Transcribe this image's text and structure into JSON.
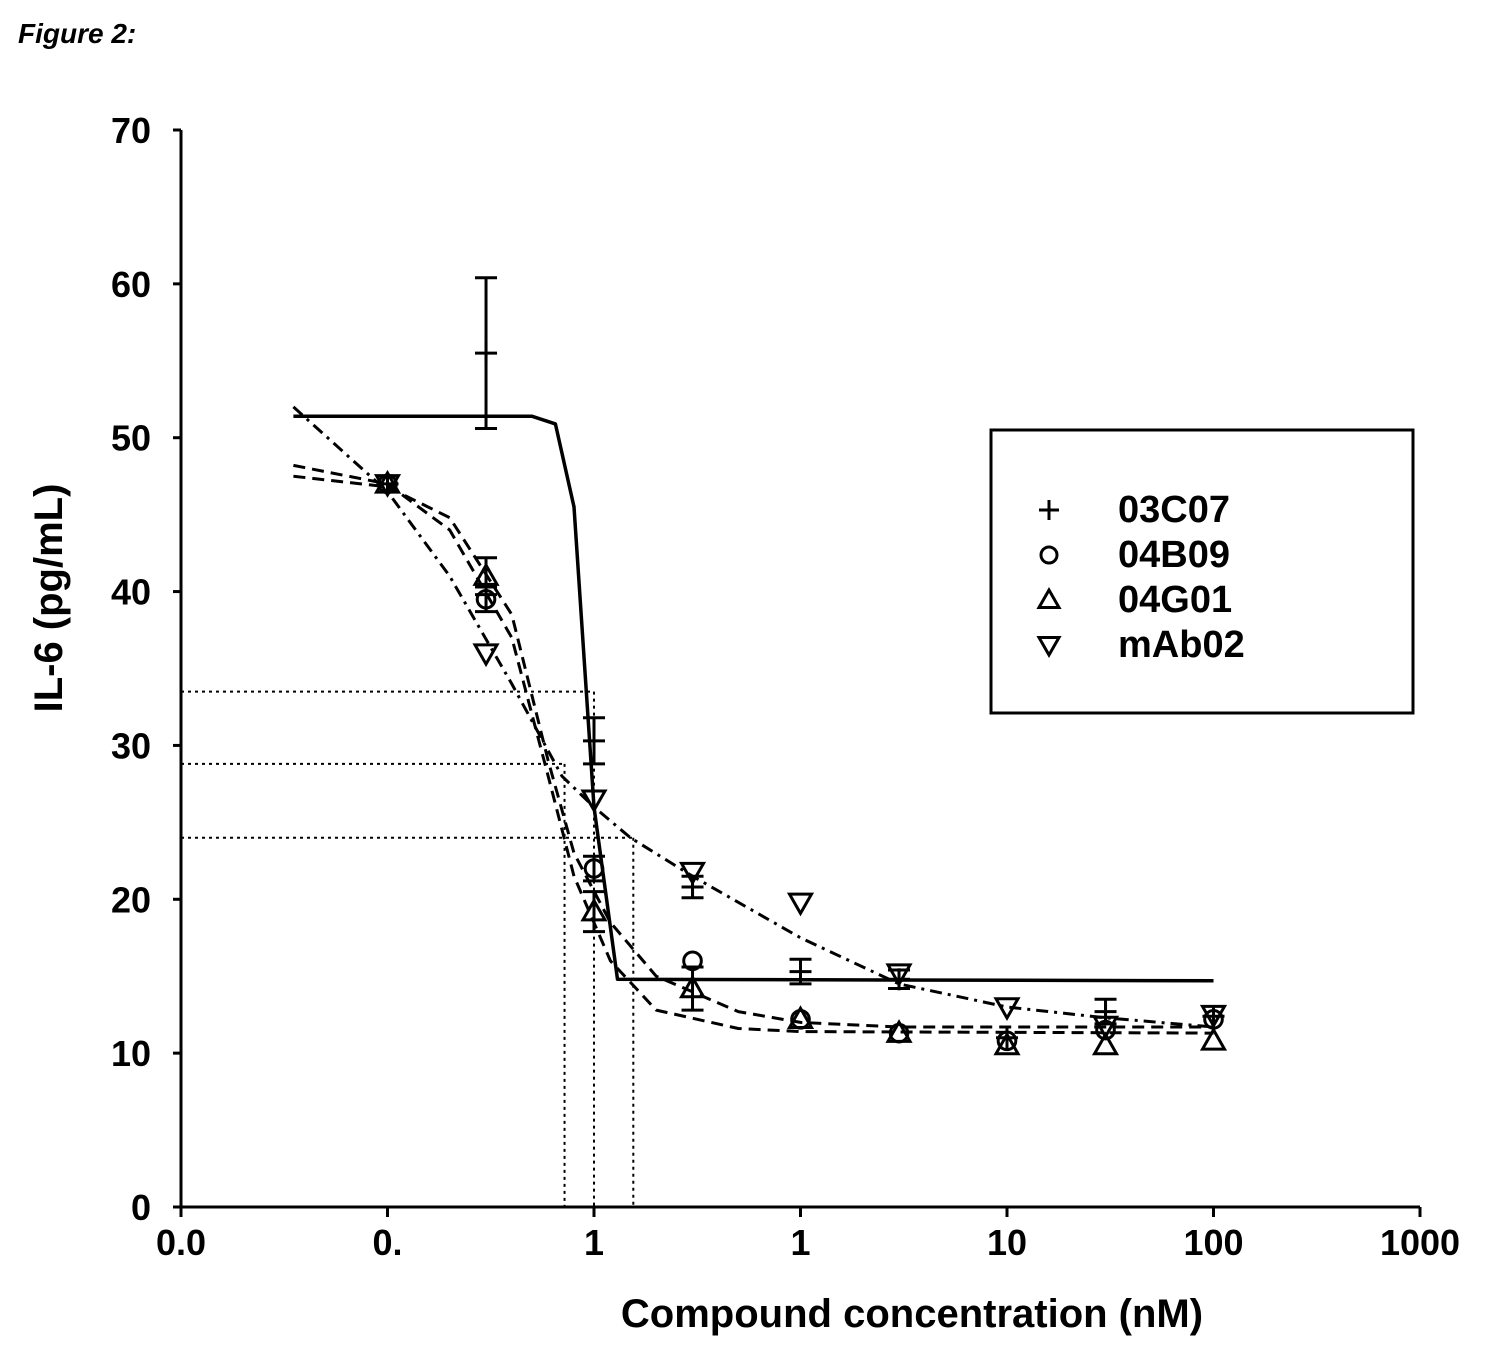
{
  "figure": {
    "label": "Figure 2:"
  },
  "chart_data": {
    "type": "scatter",
    "title": "",
    "xlabel": "Compound concentration (nM)",
    "ylabel": "IL-6 (pg/mL)",
    "x_scale": "log",
    "x_tick_labels": [
      "0.0",
      "0.",
      "1",
      "1",
      "10",
      "100",
      "1000"
    ],
    "y_ticks": [
      0,
      10,
      20,
      30,
      40,
      50,
      60,
      70
    ],
    "ylim": [
      0,
      70
    ],
    "grid": false,
    "legend_position": "right",
    "series": [
      {
        "name": "03C07",
        "marker": "plus",
        "curve_style": "solid",
        "points": [
          {
            "x": 0.01,
            "y": 47.0
          },
          {
            "x": 0.03,
            "y": 55.5,
            "err": 4.9
          },
          {
            "x": 0.1,
            "y": 30.3,
            "err": 1.5
          },
          {
            "x": 0.3,
            "y": 20.8,
            "err": 0.7
          },
          {
            "x": 1,
            "y": 15.3,
            "err": 0.8
          },
          {
            "x": 3,
            "y": 14.8,
            "err": 0.6
          },
          {
            "x": 10,
            "y": 11.0
          },
          {
            "x": 30,
            "y": 12.7,
            "err": 0.8
          },
          {
            "x": 100,
            "y": 12.4
          }
        ],
        "curve": [
          [
            0.0035,
            51.4
          ],
          [
            0.05,
            51.4
          ],
          [
            0.065,
            50.9
          ],
          [
            0.08,
            45.5
          ],
          [
            0.1,
            26.0
          ],
          [
            0.13,
            14.8
          ],
          [
            100,
            14.7
          ]
        ]
      },
      {
        "name": "04B09",
        "marker": "circle",
        "curve_style": "dashed",
        "points": [
          {
            "x": 0.01,
            "y": 47.0
          },
          {
            "x": 0.03,
            "y": 39.5,
            "err": 0.8
          },
          {
            "x": 0.1,
            "y": 22.0,
            "err": 0.8
          },
          {
            "x": 0.3,
            "y": 16.0
          },
          {
            "x": 1,
            "y": 12.2
          },
          {
            "x": 3,
            "y": 11.3
          },
          {
            "x": 10,
            "y": 10.8
          },
          {
            "x": 30,
            "y": 11.5
          },
          {
            "x": 100,
            "y": 12.2
          }
        ],
        "curve": [
          [
            0.0035,
            47.5
          ],
          [
            0.01,
            46.8
          ],
          [
            0.02,
            44.8
          ],
          [
            0.04,
            38.5
          ],
          [
            0.06,
            29.0
          ],
          [
            0.08,
            23.0
          ],
          [
            0.12,
            18.5
          ],
          [
            0.2,
            15.0
          ],
          [
            0.5,
            12.7
          ],
          [
            1,
            12.0
          ],
          [
            3,
            11.7
          ],
          [
            100,
            11.7
          ]
        ]
      },
      {
        "name": "04G01",
        "marker": "triangle-up",
        "curve_style": "dashed",
        "points": [
          {
            "x": 0.01,
            "y": 47.0
          },
          {
            "x": 0.03,
            "y": 41.0,
            "err": 1.2
          },
          {
            "x": 0.1,
            "y": 19.2,
            "err": 1.3
          },
          {
            "x": 0.3,
            "y": 14.2,
            "err": 1.4
          },
          {
            "x": 1,
            "y": 12.2
          },
          {
            "x": 3,
            "y": 11.3
          },
          {
            "x": 10,
            "y": 10.5
          },
          {
            "x": 30,
            "y": 10.5
          },
          {
            "x": 100,
            "y": 10.8
          }
        ],
        "curve": [
          [
            0.0035,
            48.2
          ],
          [
            0.01,
            47.0
          ],
          [
            0.02,
            44.0
          ],
          [
            0.04,
            37.0
          ],
          [
            0.06,
            28.0
          ],
          [
            0.08,
            21.5
          ],
          [
            0.12,
            16.0
          ],
          [
            0.2,
            12.8
          ],
          [
            0.5,
            11.6
          ],
          [
            1,
            11.4
          ],
          [
            100,
            11.3
          ]
        ]
      },
      {
        "name": "mAb02",
        "marker": "triangle-down",
        "curve_style": "dash-dot",
        "points": [
          {
            "x": 0.01,
            "y": 47.0
          },
          {
            "x": 0.03,
            "y": 36.0
          },
          {
            "x": 0.1,
            "y": 26.5
          },
          {
            "x": 0.3,
            "y": 21.8
          },
          {
            "x": 1,
            "y": 19.8
          },
          {
            "x": 3,
            "y": 15.2
          },
          {
            "x": 10,
            "y": 13.0
          },
          {
            "x": 30,
            "y": 11.8
          },
          {
            "x": 100,
            "y": 12.5
          }
        ],
        "curve": [
          [
            0.0035,
            52.0
          ],
          [
            0.01,
            46.5
          ],
          [
            0.02,
            41.0
          ],
          [
            0.04,
            34.0
          ],
          [
            0.07,
            28.0
          ],
          [
            0.1,
            26.0
          ],
          [
            0.15,
            24.0
          ],
          [
            0.3,
            21.5
          ],
          [
            1,
            17.5
          ],
          [
            3,
            14.5
          ],
          [
            10,
            13.0
          ],
          [
            30,
            12.3
          ],
          [
            100,
            11.7
          ]
        ]
      }
    ],
    "reference_lines": [
      {
        "y": 33.5,
        "x": 0.1
      },
      {
        "y": 28.8,
        "x": 0.072
      },
      {
        "y": 24.0,
        "x": 0.155
      }
    ],
    "legend": {
      "entries": [
        {
          "label": "03C07",
          "marker": "plus"
        },
        {
          "label": "04B09",
          "marker": "circle"
        },
        {
          "label": "04G01",
          "marker": "triangle-up"
        },
        {
          "label": "mAb02",
          "marker": "triangle-down"
        }
      ]
    }
  }
}
